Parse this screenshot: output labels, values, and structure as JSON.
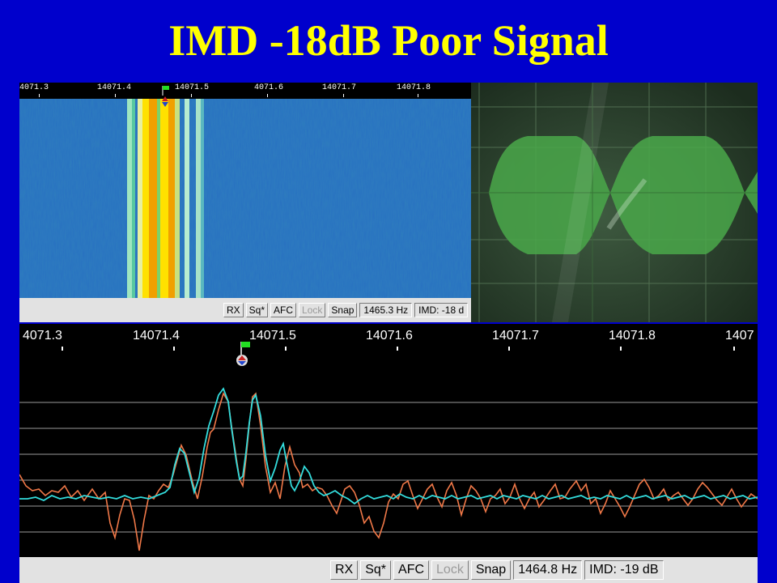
{
  "slide": {
    "title": "IMD -18dB Poor Signal"
  },
  "waterfall": {
    "ticks": [
      "4071.3",
      "14071.4",
      "14071.5",
      "4071.6",
      "14071.7",
      "14071.8"
    ],
    "status": {
      "rx": "RX",
      "sq": "Sq*",
      "afc": "AFC",
      "lock": "Lock",
      "snap": "Snap",
      "freq": "1465.3 Hz",
      "imd": "IMD: -18 d"
    }
  },
  "spectrum": {
    "ticks": [
      "4071.3",
      "14071.4",
      "14071.5",
      "14071.6",
      "14071.7",
      "14071.8",
      "1407"
    ],
    "status": {
      "rx": "RX",
      "sq": "Sq*",
      "afc": "AFC",
      "lock": "Lock",
      "snap": "Snap",
      "freq": "1464.8 Hz",
      "imd": "IMD: -19 dB"
    }
  },
  "colors": {
    "background": "#0000cc",
    "title": "#ffff00",
    "trace_averaged": "#33dddd",
    "trace_instant": "#f07848",
    "cursor_flag": "#22dd22",
    "scope_trace": "#66ff66"
  }
}
